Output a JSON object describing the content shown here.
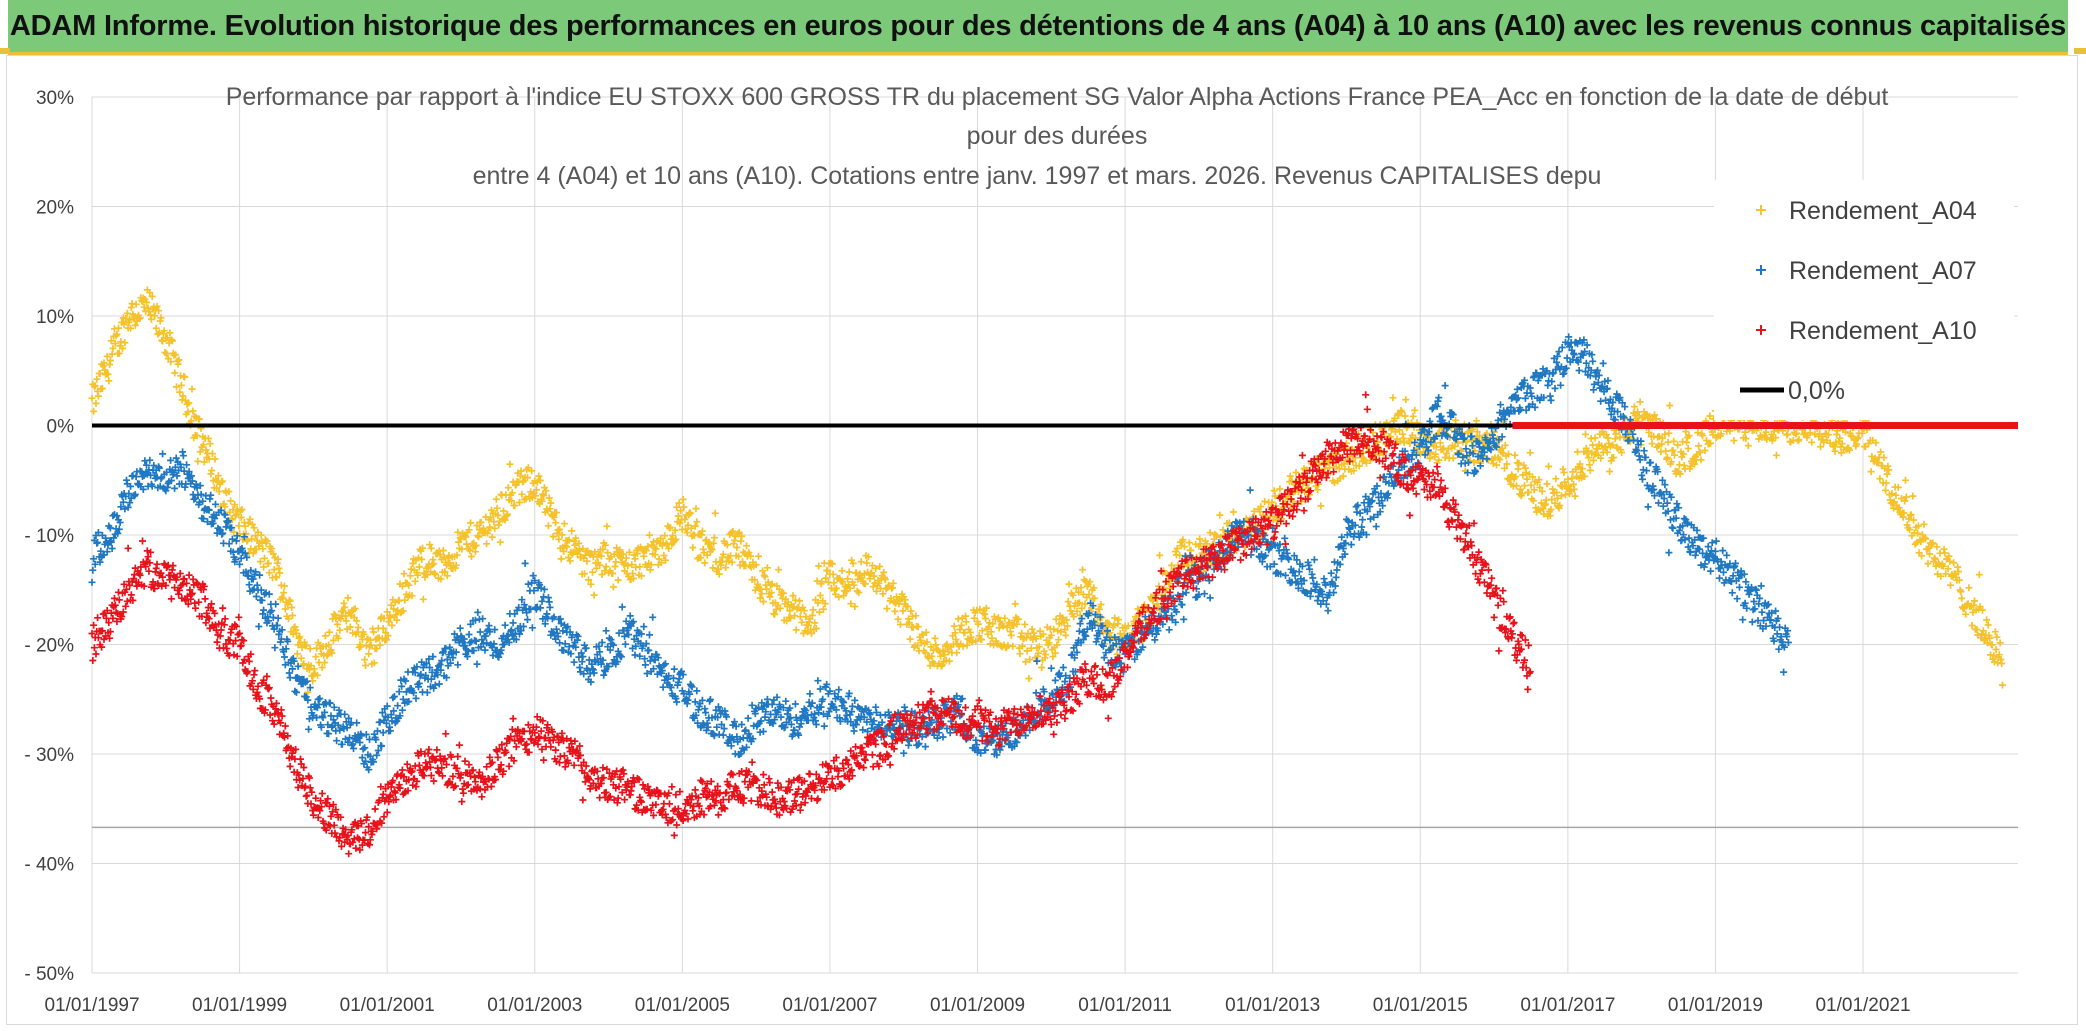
{
  "banner": {
    "title": "ADAM Informe. Evolution historique des performances en euros pour des détentions de 4 ans (A04) à 10 ans (A10) avec les revenus connus capitalisés",
    "background": "#7dc97a"
  },
  "chart_data": {
    "type": "scatter",
    "title_lines": [
      "Performance par rapport à l'indice EU STOXX 600 GROSS TR  du placement SG Valor Alpha Actions France PEA_Acc en fonction de la date de début",
      "pour des durées",
      "entre 4 (A04) et 10 ans (A10). Cotations entre janv. 1997 et mars. 2026. Revenus CAPITALISES depu"
    ],
    "x_tick_labels": [
      "01/01/1997",
      "01/01/1999",
      "01/01/2001",
      "01/01/2003",
      "01/01/2005",
      "01/01/2007",
      "01/01/2009",
      "01/01/2011",
      "01/01/2013",
      "01/01/2015",
      "01/01/2017",
      "01/01/2019",
      "01/01/2021"
    ],
    "x_tick_years": [
      1997,
      1999,
      2001,
      2003,
      2005,
      2007,
      2009,
      2011,
      2013,
      2015,
      2017,
      2019,
      2021
    ],
    "x_range": [
      1997,
      2023.1
    ],
    "y_tick_labels": [
      "30%",
      "20%",
      "10%",
      "0%",
      "- 10%",
      "- 20%",
      "- 30%",
      "- 40%",
      "- 50%"
    ],
    "y_tick_values": [
      30,
      20,
      10,
      0,
      -10,
      -20,
      -30,
      -40,
      -50
    ],
    "ylim": [
      -50,
      30
    ],
    "reference_line_value": -36.7,
    "series": [
      {
        "name": "Rendement_A04",
        "color": "#f5c22b",
        "marker": "+",
        "points": [
          [
            1997.0,
            2
          ],
          [
            1997.25,
            6
          ],
          [
            1997.5,
            10
          ],
          [
            1997.75,
            11
          ],
          [
            1998.0,
            8
          ],
          [
            1998.2,
            4
          ],
          [
            1998.4,
            0
          ],
          [
            1998.6,
            -3
          ],
          [
            1998.8,
            -7
          ],
          [
            1999.0,
            -9
          ],
          [
            1999.25,
            -11
          ],
          [
            1999.5,
            -13
          ],
          [
            1999.75,
            -19
          ],
          [
            2000.0,
            -22
          ],
          [
            2000.25,
            -19
          ],
          [
            2000.5,
            -17
          ],
          [
            2000.75,
            -21
          ],
          [
            2001.0,
            -18
          ],
          [
            2001.25,
            -15
          ],
          [
            2001.5,
            -12
          ],
          [
            2001.75,
            -13
          ],
          [
            2002.0,
            -11
          ],
          [
            2002.25,
            -10
          ],
          [
            2002.5,
            -8
          ],
          [
            2002.75,
            -6
          ],
          [
            2003.0,
            -5
          ],
          [
            2003.25,
            -9
          ],
          [
            2003.5,
            -11
          ],
          [
            2003.75,
            -13
          ],
          [
            2004.0,
            -12
          ],
          [
            2004.25,
            -13
          ],
          [
            2004.5,
            -12
          ],
          [
            2004.75,
            -11
          ],
          [
            2005.0,
            -8
          ],
          [
            2005.25,
            -11
          ],
          [
            2005.5,
            -12
          ],
          [
            2005.75,
            -11
          ],
          [
            2006.0,
            -14
          ],
          [
            2006.25,
            -16
          ],
          [
            2006.5,
            -17
          ],
          [
            2006.75,
            -18
          ],
          [
            2007.0,
            -14
          ],
          [
            2007.25,
            -15
          ],
          [
            2007.5,
            -13
          ],
          [
            2007.75,
            -15
          ],
          [
            2008.0,
            -17
          ],
          [
            2008.25,
            -20
          ],
          [
            2008.5,
            -21
          ],
          [
            2008.75,
            -19
          ],
          [
            2009.0,
            -18
          ],
          [
            2009.25,
            -19
          ],
          [
            2009.5,
            -19
          ],
          [
            2009.75,
            -20
          ],
          [
            2010.0,
            -20
          ],
          [
            2010.25,
            -17
          ],
          [
            2010.5,
            -15
          ],
          [
            2010.75,
            -19
          ],
          [
            2011.0,
            -19
          ],
          [
            2011.25,
            -18
          ],
          [
            2011.5,
            -15
          ],
          [
            2011.75,
            -12
          ],
          [
            2012.0,
            -12
          ],
          [
            2012.25,
            -11
          ],
          [
            2012.5,
            -10
          ],
          [
            2012.75,
            -9
          ],
          [
            2013.0,
            -8
          ],
          [
            2013.25,
            -6
          ],
          [
            2013.5,
            -5
          ],
          [
            2013.75,
            -4
          ],
          [
            2014.0,
            -3
          ],
          [
            2014.25,
            -2
          ],
          [
            2014.5,
            -1
          ],
          [
            2014.75,
            0
          ],
          [
            2015.0,
            -1
          ],
          [
            2015.25,
            -2
          ],
          [
            2015.5,
            -1
          ],
          [
            2015.75,
            -2
          ],
          [
            2016.0,
            -2
          ],
          [
            2016.25,
            -4
          ],
          [
            2016.5,
            -6
          ],
          [
            2016.75,
            -7
          ],
          [
            2017.0,
            -5
          ],
          [
            2017.25,
            -3
          ],
          [
            2017.5,
            -2
          ],
          [
            2017.75,
            -1
          ],
          [
            2018.0,
            1
          ],
          [
            2018.25,
            -1
          ],
          [
            2018.5,
            -3
          ],
          [
            2018.75,
            -2
          ],
          [
            2019.0,
            0
          ],
          [
            2019.25,
            0
          ],
          [
            2019.5,
            0
          ],
          [
            2019.75,
            0
          ],
          [
            2020.0,
            0
          ],
          [
            2020.25,
            0
          ],
          [
            2020.5,
            -1
          ],
          [
            2020.75,
            -1
          ],
          [
            2021.0,
            0
          ],
          [
            2021.25,
            -4
          ],
          [
            2021.5,
            -7
          ],
          [
            2021.75,
            -10
          ],
          [
            2022.0,
            -12
          ],
          [
            2022.25,
            -14
          ],
          [
            2022.5,
            -17
          ],
          [
            2022.75,
            -20
          ],
          [
            2022.9,
            -21
          ]
        ]
      },
      {
        "name": "Rendement_A07",
        "color": "#1f78c1",
        "marker": "+",
        "points": [
          [
            1997.0,
            -12
          ],
          [
            1997.25,
            -10
          ],
          [
            1997.5,
            -6
          ],
          [
            1997.75,
            -4
          ],
          [
            1998.0,
            -5
          ],
          [
            1998.25,
            -4
          ],
          [
            1998.5,
            -7
          ],
          [
            1998.75,
            -9
          ],
          [
            1999.0,
            -12
          ],
          [
            1999.25,
            -15
          ],
          [
            1999.5,
            -18
          ],
          [
            1999.75,
            -23
          ],
          [
            2000.0,
            -26
          ],
          [
            2000.25,
            -27
          ],
          [
            2000.5,
            -28
          ],
          [
            2000.75,
            -30
          ],
          [
            2001.0,
            -27
          ],
          [
            2001.25,
            -24
          ],
          [
            2001.5,
            -23
          ],
          [
            2001.75,
            -22
          ],
          [
            2002.0,
            -20
          ],
          [
            2002.25,
            -19
          ],
          [
            2002.5,
            -20
          ],
          [
            2002.75,
            -18
          ],
          [
            2003.0,
            -15
          ],
          [
            2003.25,
            -18
          ],
          [
            2003.5,
            -20
          ],
          [
            2003.75,
            -22
          ],
          [
            2004.0,
            -21
          ],
          [
            2004.25,
            -19
          ],
          [
            2004.5,
            -20
          ],
          [
            2004.75,
            -23
          ],
          [
            2005.0,
            -24
          ],
          [
            2005.25,
            -26
          ],
          [
            2005.5,
            -27
          ],
          [
            2005.75,
            -29
          ],
          [
            2006.0,
            -27
          ],
          [
            2006.25,
            -26
          ],
          [
            2006.5,
            -27
          ],
          [
            2006.75,
            -26
          ],
          [
            2007.0,
            -25
          ],
          [
            2007.25,
            -26
          ],
          [
            2007.5,
            -27
          ],
          [
            2007.75,
            -27
          ],
          [
            2008.0,
            -27
          ],
          [
            2008.25,
            -28
          ],
          [
            2008.5,
            -27
          ],
          [
            2008.75,
            -26
          ],
          [
            2009.0,
            -29
          ],
          [
            2009.25,
            -29
          ],
          [
            2009.5,
            -28
          ],
          [
            2009.75,
            -26
          ],
          [
            2010.0,
            -25
          ],
          [
            2010.25,
            -23
          ],
          [
            2010.5,
            -17
          ],
          [
            2010.75,
            -20
          ],
          [
            2011.0,
            -21
          ],
          [
            2011.25,
            -19
          ],
          [
            2011.5,
            -18
          ],
          [
            2011.75,
            -15
          ],
          [
            2012.0,
            -14
          ],
          [
            2012.25,
            -12
          ],
          [
            2012.5,
            -10
          ],
          [
            2012.75,
            -10
          ],
          [
            2013.0,
            -12
          ],
          [
            2013.25,
            -13
          ],
          [
            2013.5,
            -14
          ],
          [
            2013.75,
            -16
          ],
          [
            2014.0,
            -10
          ],
          [
            2014.25,
            -8
          ],
          [
            2014.5,
            -6
          ],
          [
            2014.75,
            -4
          ],
          [
            2015.0,
            -2
          ],
          [
            2015.25,
            1
          ],
          [
            2015.5,
            -1
          ],
          [
            2015.75,
            -3
          ],
          [
            2016.0,
            -1
          ],
          [
            2016.25,
            2
          ],
          [
            2016.5,
            3
          ],
          [
            2016.75,
            4
          ],
          [
            2017.0,
            7
          ],
          [
            2017.25,
            6
          ],
          [
            2017.5,
            3
          ],
          [
            2017.75,
            1
          ],
          [
            2018.0,
            -3
          ],
          [
            2018.25,
            -6
          ],
          [
            2018.5,
            -9
          ],
          [
            2018.75,
            -11
          ],
          [
            2019.0,
            -12
          ],
          [
            2019.25,
            -14
          ],
          [
            2019.5,
            -16
          ],
          [
            2019.75,
            -18
          ],
          [
            2020.0,
            -20
          ]
        ]
      },
      {
        "name": "Rendement_A10",
        "color": "#e8121a",
        "marker": "+",
        "points": [
          [
            1997.0,
            -20
          ],
          [
            1997.25,
            -18
          ],
          [
            1997.5,
            -15
          ],
          [
            1997.75,
            -13
          ],
          [
            1998.0,
            -14
          ],
          [
            1998.25,
            -15
          ],
          [
            1998.5,
            -16
          ],
          [
            1998.75,
            -19
          ],
          [
            1999.0,
            -20
          ],
          [
            1999.25,
            -24
          ],
          [
            1999.5,
            -26
          ],
          [
            1999.75,
            -31
          ],
          [
            2000.0,
            -34
          ],
          [
            2000.25,
            -36
          ],
          [
            2000.5,
            -38
          ],
          [
            2000.75,
            -37
          ],
          [
            2001.0,
            -34
          ],
          [
            2001.25,
            -32
          ],
          [
            2001.5,
            -31
          ],
          [
            2001.75,
            -31
          ],
          [
            2002.0,
            -32
          ],
          [
            2002.25,
            -33
          ],
          [
            2002.5,
            -31
          ],
          [
            2002.75,
            -29
          ],
          [
            2003.0,
            -28
          ],
          [
            2003.25,
            -29
          ],
          [
            2003.5,
            -30
          ],
          [
            2003.75,
            -32
          ],
          [
            2004.0,
            -33
          ],
          [
            2004.25,
            -33
          ],
          [
            2004.5,
            -34
          ],
          [
            2004.75,
            -35
          ],
          [
            2005.0,
            -35
          ],
          [
            2005.25,
            -34
          ],
          [
            2005.5,
            -34
          ],
          [
            2005.75,
            -33
          ],
          [
            2006.0,
            -33
          ],
          [
            2006.25,
            -34
          ],
          [
            2006.5,
            -34
          ],
          [
            2006.75,
            -33
          ],
          [
            2007.0,
            -32
          ],
          [
            2007.25,
            -31
          ],
          [
            2007.5,
            -30
          ],
          [
            2007.75,
            -29
          ],
          [
            2008.0,
            -27
          ],
          [
            2008.25,
            -27
          ],
          [
            2008.5,
            -26
          ],
          [
            2008.75,
            -27
          ],
          [
            2009.0,
            -27
          ],
          [
            2009.25,
            -28
          ],
          [
            2009.5,
            -27
          ],
          [
            2009.75,
            -26
          ],
          [
            2010.0,
            -26
          ],
          [
            2010.25,
            -25
          ],
          [
            2010.5,
            -23
          ],
          [
            2010.75,
            -24
          ],
          [
            2011.0,
            -21
          ],
          [
            2011.25,
            -18
          ],
          [
            2011.5,
            -16
          ],
          [
            2011.75,
            -14
          ],
          [
            2012.0,
            -13
          ],
          [
            2012.25,
            -12
          ],
          [
            2012.5,
            -11
          ],
          [
            2012.75,
            -10
          ],
          [
            2013.0,
            -9
          ],
          [
            2013.25,
            -7
          ],
          [
            2013.5,
            -5
          ],
          [
            2013.75,
            -3
          ],
          [
            2014.0,
            -2
          ],
          [
            2014.25,
            -1
          ],
          [
            2014.5,
            -2
          ],
          [
            2014.75,
            -4
          ],
          [
            2015.0,
            -5
          ],
          [
            2015.25,
            -6
          ],
          [
            2015.5,
            -9
          ],
          [
            2015.75,
            -12
          ],
          [
            2016.0,
            -16
          ],
          [
            2016.25,
            -19
          ],
          [
            2016.5,
            -22
          ]
        ]
      }
    ],
    "legend": [
      {
        "label": "Rendement_A04",
        "color": "#f5c22b",
        "marker": "+"
      },
      {
        "label": "Rendement_A07",
        "color": "#1f78c1",
        "marker": "+"
      },
      {
        "label": "Rendement_A10",
        "color": "#e8121a",
        "marker": "+"
      },
      {
        "label": "0,0%",
        "color": "#000000",
        "marker": "line"
      }
    ],
    "zero_line": {
      "value": 0,
      "black_until": 2016.25,
      "red_from": 2016.25,
      "red_color": "#e8121a"
    }
  }
}
